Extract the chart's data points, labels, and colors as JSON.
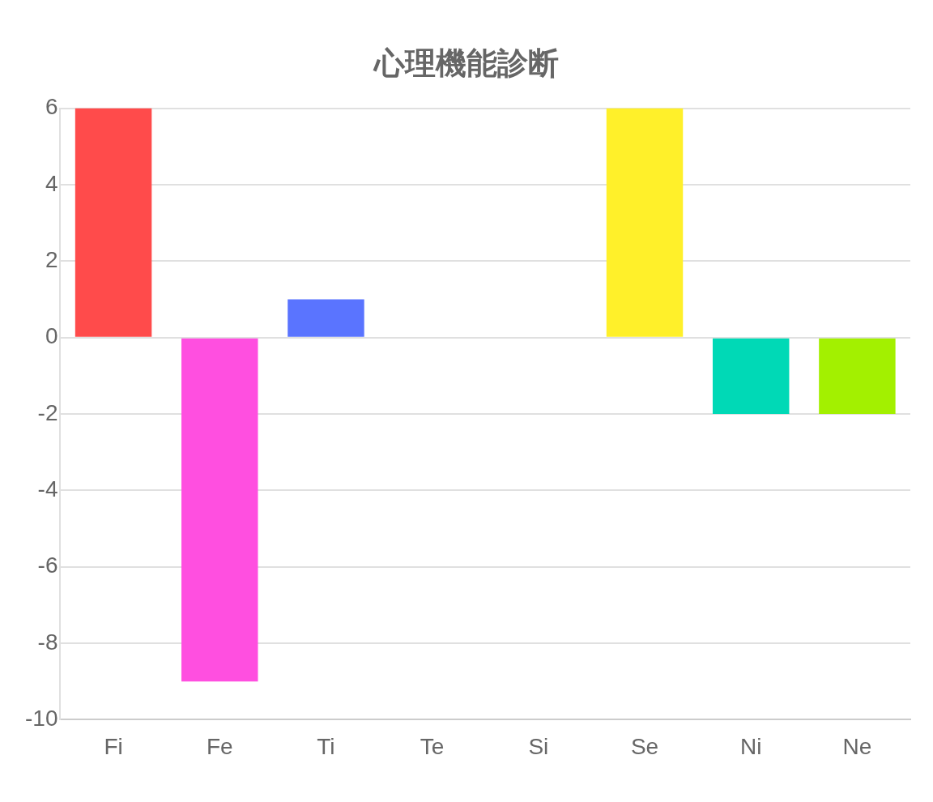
{
  "chart_data": {
    "type": "bar",
    "title": "心理機能診断",
    "categories": [
      "Fi",
      "Fe",
      "Ti",
      "Te",
      "Si",
      "Se",
      "Ni",
      "Ne"
    ],
    "values": [
      6,
      -9,
      1,
      0,
      0,
      6,
      -2,
      -2
    ],
    "colors": [
      "#ff4b4b",
      "#ff4fe0",
      "#5a74ff",
      "#36a2eb",
      "#9966ff",
      "#fff02a",
      "#00d9b6",
      "#a3f000"
    ],
    "ylim": [
      -10,
      6
    ],
    "yticks": [
      -10,
      -8,
      -6,
      -4,
      -2,
      0,
      2,
      4,
      6
    ],
    "grid": "y",
    "legend": false
  }
}
